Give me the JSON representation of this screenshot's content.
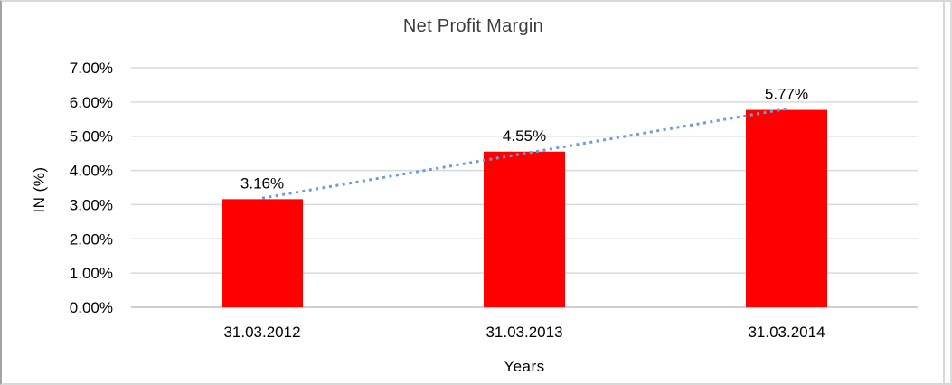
{
  "chart_data": {
    "type": "bar",
    "title": "Net Profit Margin",
    "xlabel": "Years",
    "ylabel": "IN (%)",
    "categories": [
      "31.03.2012",
      "31.03.2013",
      "31.03.2014"
    ],
    "values": [
      3.16,
      4.55,
      5.77
    ],
    "data_labels": [
      "3.16%",
      "4.55%",
      "5.77%"
    ],
    "yticks": [
      "0.00%",
      "1.00%",
      "2.00%",
      "3.00%",
      "4.00%",
      "5.00%",
      "6.00%",
      "7.00%"
    ],
    "ylim": [
      0,
      7
    ],
    "grid": "horizontal",
    "legend": "none",
    "colors": {
      "bar": "#FF0000",
      "gridline": "#D9D9D9",
      "axis_line": "#CFCFCF",
      "trendline": "#6C9DD6"
    },
    "trendline": {
      "type": "linear",
      "style": "dotted",
      "start_value": 3.19,
      "end_value": 5.8
    }
  }
}
